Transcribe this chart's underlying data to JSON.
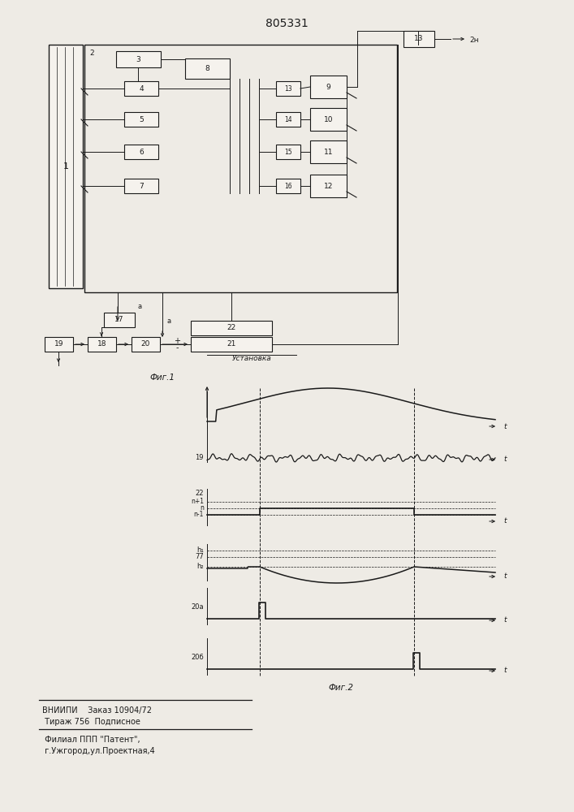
{
  "title": "805331",
  "fig1_label": "Фиг.1",
  "fig2_label": "Фиг.2",
  "ustanovka_label": "Установка",
  "footer_line1": "ВНИИПИ    Заказ 10904/72",
  "footer_line2": " Тираж 756  Подписное",
  "footer_line3": " Филиал ППП \"Патент\",",
  "footer_line4": " г.Ужгород,ул.Проектная,4",
  "bg_color": "#eeebe5",
  "line_color": "#1a1a1a",
  "box_color": "#f5f2ed"
}
